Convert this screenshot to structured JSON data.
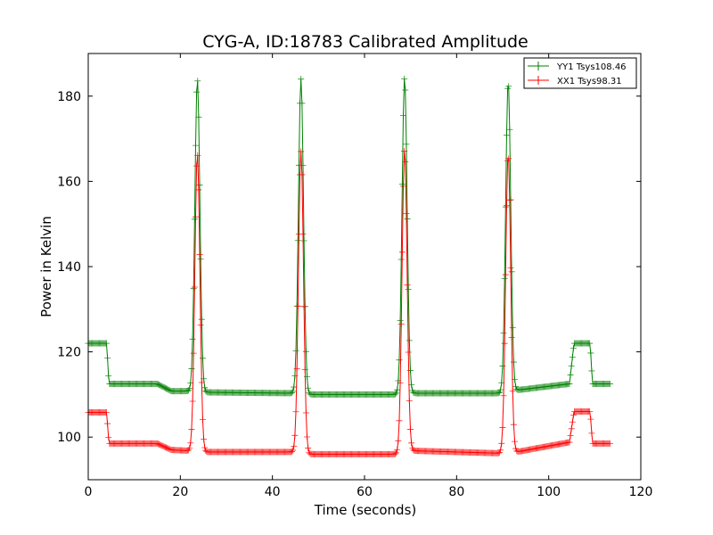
{
  "chart_data": {
    "type": "line",
    "title": "CYG-A, ID:18783 Calibrated Amplitude",
    "xlabel": "Time (seconds)",
    "ylabel": "Power in Kelvin",
    "xlim": [
      0,
      120
    ],
    "ylim": [
      90,
      190
    ],
    "xticks": [
      0,
      20,
      40,
      60,
      80,
      100,
      120
    ],
    "yticks": [
      100,
      120,
      140,
      160,
      180
    ],
    "grid": false,
    "legend_position": "top-right",
    "marker": "+",
    "series": [
      {
        "name": "YY1 Tsys108.46",
        "color": "#008000",
        "segments": [
          {
            "x0": 0,
            "x1": 4,
            "y0": 122,
            "y1": 122
          },
          {
            "x0": 4.5,
            "x1": 15,
            "y0": 112.5,
            "y1": 112.5
          },
          {
            "x0": 15,
            "x1": 18,
            "y0": 112.5,
            "y1": 110.8
          },
          {
            "x0": 18,
            "x1": 21.8,
            "y0": 110.8,
            "y1": 110.8
          },
          {
            "x0": 25.5,
            "x1": 44.4,
            "y0": 110.5,
            "y1": 110.3
          },
          {
            "x0": 48,
            "x1": 67,
            "y0": 110,
            "y1": 110
          },
          {
            "x0": 70.5,
            "x1": 89.4,
            "y0": 110.3,
            "y1": 110.3
          },
          {
            "x0": 93,
            "x1": 104.5,
            "y0": 111,
            "y1": 112.5
          },
          {
            "x0": 105.5,
            "x1": 109,
            "y0": 122,
            "y1": 122
          },
          {
            "x0": 109.5,
            "x1": 113.5,
            "y0": 112.5,
            "y1": 112.5
          }
        ],
        "peaks": [
          {
            "center": 23.7,
            "height": 184
          },
          {
            "center": 46.2,
            "height": 184
          },
          {
            "center": 68.7,
            "height": 184.5
          },
          {
            "center": 91.2,
            "height": 183.5
          }
        ]
      },
      {
        "name": "XX1 Tsys98.31",
        "color": "#ff0000",
        "segments": [
          {
            "x0": 0,
            "x1": 4,
            "y0": 105.8,
            "y1": 105.8
          },
          {
            "x0": 4.5,
            "x1": 15,
            "y0": 98.5,
            "y1": 98.5
          },
          {
            "x0": 15,
            "x1": 18,
            "y0": 98.5,
            "y1": 97
          },
          {
            "x0": 18,
            "x1": 21.8,
            "y0": 97,
            "y1": 96.8
          },
          {
            "x0": 25.5,
            "x1": 44.4,
            "y0": 96.5,
            "y1": 96.5
          },
          {
            "x0": 48,
            "x1": 67,
            "y0": 96,
            "y1": 96
          },
          {
            "x0": 70.5,
            "x1": 89.4,
            "y0": 96.8,
            "y1": 96.2
          },
          {
            "x0": 93,
            "x1": 104.5,
            "y0": 96.5,
            "y1": 98.8
          },
          {
            "x0": 105.5,
            "x1": 109,
            "y0": 106,
            "y1": 106
          },
          {
            "x0": 109.5,
            "x1": 113.5,
            "y0": 98.5,
            "y1": 98.5
          }
        ],
        "peaks": [
          {
            "center": 23.7,
            "height": 166.5
          },
          {
            "center": 46.2,
            "height": 167
          },
          {
            "center": 68.7,
            "height": 167.5
          },
          {
            "center": 91.2,
            "height": 166.5
          }
        ]
      }
    ]
  }
}
